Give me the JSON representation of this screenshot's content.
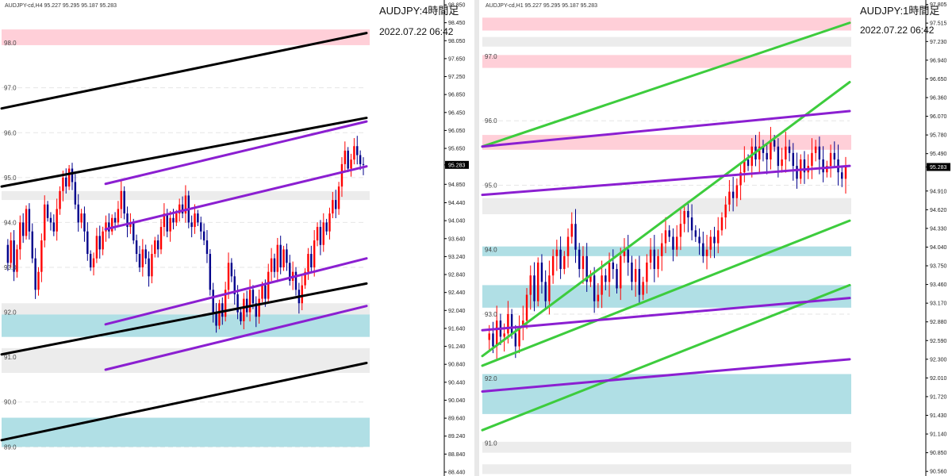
{
  "colors": {
    "resistance_zone": "#ffcfd8",
    "support_zone": "#b0dfe5",
    "gray_zone": "#ececec",
    "bull_candle": "#ff0000",
    "bear_candle": "#00008b",
    "black_channel": "#000000",
    "purple_channel": "#8b1fd1",
    "green_channel": "#3dcc3d",
    "price_label_bg": "#000000"
  },
  "chart_data": [
    {
      "type": "candlestick",
      "header": "AUDJPY-cd,H4  95.227 95.295 95.187 95.283",
      "title": "AUDJPY:4時間足",
      "date": "2022.07.22 06:42",
      "current_price": "95.283",
      "ylim": [
        88.44,
        98.85
      ],
      "y_ticks": [
        "98.850",
        "98.450",
        "98.050",
        "97.650",
        "97.250",
        "96.850",
        "96.450",
        "96.050",
        "95.650",
        "95.283",
        "94.850",
        "94.440",
        "94.040",
        "93.640",
        "93.240",
        "92.840",
        "92.440",
        "92.040",
        "91.640",
        "91.240",
        "90.840",
        "90.440",
        "90.040",
        "89.640",
        "89.240",
        "88.840",
        "88.440"
      ],
      "level_labels": [
        "98.0",
        "97.0",
        "96.0",
        "95.0",
        "94.0",
        "93.0",
        "92.0",
        "91.0",
        "90.0",
        "89.0"
      ],
      "zones": [
        {
          "kind": "resistance",
          "top": 98.3,
          "bottom": 97.95
        },
        {
          "kind": "gray",
          "top": 94.7,
          "bottom": 94.5
        },
        {
          "kind": "gray",
          "top": 92.2,
          "bottom": 91.95
        },
        {
          "kind": "support",
          "top": 91.95,
          "bottom": 91.45
        },
        {
          "kind": "gray",
          "top": 91.2,
          "bottom": 90.65
        },
        {
          "kind": "support",
          "top": 89.65,
          "bottom": 89.0
        }
      ],
      "trendlines": [
        {
          "color": "black",
          "x1": 0,
          "y1": 96.54,
          "x2": 1,
          "y2": 98.22
        },
        {
          "color": "black",
          "x1": 0,
          "y1": 94.8,
          "x2": 1,
          "y2": 96.33
        },
        {
          "color": "black",
          "x1": 0,
          "y1": 91.06,
          "x2": 1,
          "y2": 92.64
        },
        {
          "color": "black",
          "x1": 0,
          "y1": 89.15,
          "x2": 1,
          "y2": 90.87
        },
        {
          "color": "purple",
          "x1": 0.285,
          "y1": 94.86,
          "x2": 1,
          "y2": 96.25
        },
        {
          "color": "purple",
          "x1": 0.285,
          "y1": 93.85,
          "x2": 1,
          "y2": 95.25
        },
        {
          "color": "purple",
          "x1": 0.285,
          "y1": 91.73,
          "x2": 1,
          "y2": 93.2
        },
        {
          "color": "purple",
          "x1": 0.285,
          "y1": 90.72,
          "x2": 1,
          "y2": 92.14
        }
      ],
      "close_path": [
        93.5,
        93.1,
        93.6,
        92.9,
        93.4,
        94.0,
        93.7,
        94.3,
        93.8,
        93.2,
        92.5,
        92.9,
        93.6,
        94.4,
        94.1,
        94.0,
        93.8,
        94.3,
        94.7,
        95.0,
        94.8,
        95.2,
        94.9,
        94.4,
        94.0,
        94.2,
        93.8,
        93.3,
        93.0,
        93.2,
        93.7,
        93.4,
        93.8,
        94.0,
        93.8,
        94.1,
        94.0,
        94.3,
        94.7,
        94.2,
        93.9,
        94.0,
        93.6,
        93.3,
        93.0,
        93.4,
        93.2,
        92.8,
        93.3,
        93.6,
        93.4,
        93.9,
        94.2,
        93.8,
        94.1,
        94.0,
        94.2,
        94.4,
        94.2,
        94.6,
        94.0,
        93.9,
        94.2,
        94.0,
        93.8,
        93.6,
        93.3,
        92.5,
        92.0,
        91.7,
        92.2,
        91.9,
        92.5,
        93.1,
        92.8,
        92.4,
        92.0,
        91.8,
        92.3,
        92.0,
        92.5,
        92.2,
        91.9,
        92.3,
        92.6,
        92.3,
        92.9,
        93.2,
        92.9,
        93.5,
        93.0,
        93.4,
        93.1,
        92.7,
        92.9,
        92.5,
        92.2,
        92.6,
        92.9,
        93.3,
        93.0,
        93.6,
        93.9,
        93.5,
        94.0,
        93.8,
        94.2,
        94.5,
        94.3,
        94.8,
        95.3,
        95.6,
        95.2,
        95.4,
        95.7,
        95.5,
        95.3,
        95.283
      ]
    },
    {
      "type": "candlestick",
      "header": "AUDJPY-cd,H1  95.227 95.295 95.187 95.283",
      "title": "AUDJPY:1時間足",
      "date": "2022.07.22 06:42",
      "current_price": "95.283",
      "ylim": [
        90.55,
        97.8
      ],
      "y_ticks": [
        "97.805",
        "97.515",
        "97.230",
        "96.940",
        "96.650",
        "96.360",
        "96.070",
        "95.780",
        "95.490",
        "95.283",
        "94.910",
        "94.620",
        "94.330",
        "94.040",
        "93.750",
        "93.460",
        "93.170",
        "92.880",
        "92.590",
        "92.300",
        "92.010",
        "91.720",
        "91.430",
        "91.140",
        "90.850",
        "90.560"
      ],
      "level_labels": [
        "97.0",
        "96.0",
        "95.0",
        "94.0",
        "93.0",
        "92.0",
        "91.0"
      ],
      "zones": [
        {
          "kind": "resistance",
          "top": 97.6,
          "bottom": 97.4
        },
        {
          "kind": "gray",
          "top": 97.3,
          "bottom": 97.15
        },
        {
          "kind": "resistance",
          "top": 97.02,
          "bottom": 96.82
        },
        {
          "kind": "resistance",
          "top": 95.78,
          "bottom": 95.55
        },
        {
          "kind": "gray",
          "top": 94.8,
          "bottom": 94.55
        },
        {
          "kind": "support",
          "top": 94.05,
          "bottom": 93.9
        },
        {
          "kind": "support",
          "top": 93.45,
          "bottom": 93.1
        },
        {
          "kind": "support",
          "top": 92.07,
          "bottom": 91.45
        },
        {
          "kind": "gray",
          "top": 91.02,
          "bottom": 90.85
        },
        {
          "kind": "gray",
          "top": 90.67,
          "bottom": 90.52
        }
      ],
      "trendlines": [
        {
          "color": "green",
          "x1": 0,
          "y1": 95.6,
          "x2": 1,
          "y2": 97.52
        },
        {
          "color": "green",
          "x1": 0,
          "y1": 92.35,
          "x2": 1,
          "y2": 96.6
        },
        {
          "color": "green",
          "x1": 0,
          "y1": 92.2,
          "x2": 1,
          "y2": 94.45
        },
        {
          "color": "green",
          "x1": 0,
          "y1": 91.2,
          "x2": 1,
          "y2": 93.45
        },
        {
          "color": "purple",
          "x1": 0,
          "y1": 95.6,
          "x2": 1,
          "y2": 96.15
        },
        {
          "color": "purple",
          "x1": 0,
          "y1": 94.85,
          "x2": 1,
          "y2": 95.3
        },
        {
          "color": "purple",
          "x1": 0,
          "y1": 92.75,
          "x2": 1,
          "y2": 93.25
        },
        {
          "color": "purple",
          "x1": 0,
          "y1": 91.8,
          "x2": 1,
          "y2": 92.3
        }
      ],
      "close_path": [
        92.6,
        92.7,
        92.5,
        92.9,
        92.65,
        92.7,
        93.0,
        92.7,
        92.5,
        92.8,
        92.9,
        93.3,
        93.6,
        93.2,
        93.8,
        93.5,
        93.2,
        93.6,
        93.9,
        94.0,
        93.7,
        93.9,
        94.2,
        94.4,
        94.0,
        93.7,
        93.9,
        93.5,
        93.6,
        93.2,
        93.3,
        93.6,
        93.5,
        93.8,
        93.7,
        93.4,
        93.9,
        94.0,
        93.8,
        93.5,
        93.7,
        93.3,
        93.5,
        93.8,
        94.0,
        93.7,
        93.9,
        94.1,
        94.3,
        94.2,
        94.0,
        94.2,
        94.4,
        94.6,
        94.5,
        94.3,
        94.2,
        94.1,
        93.9,
        94.0,
        94.2,
        94.1,
        94.3,
        94.5,
        94.7,
        94.9,
        94.8,
        95.0,
        95.2,
        95.4,
        95.3,
        95.6,
        95.4,
        95.6,
        95.5,
        95.4,
        95.7,
        95.6,
        95.3,
        95.4,
        95.6,
        95.5,
        95.3,
        95.1,
        95.4,
        95.2,
        95.3,
        95.5,
        95.6,
        95.4,
        95.2,
        95.3,
        95.5,
        95.4,
        95.2,
        95.1,
        95.283
      ]
    }
  ]
}
